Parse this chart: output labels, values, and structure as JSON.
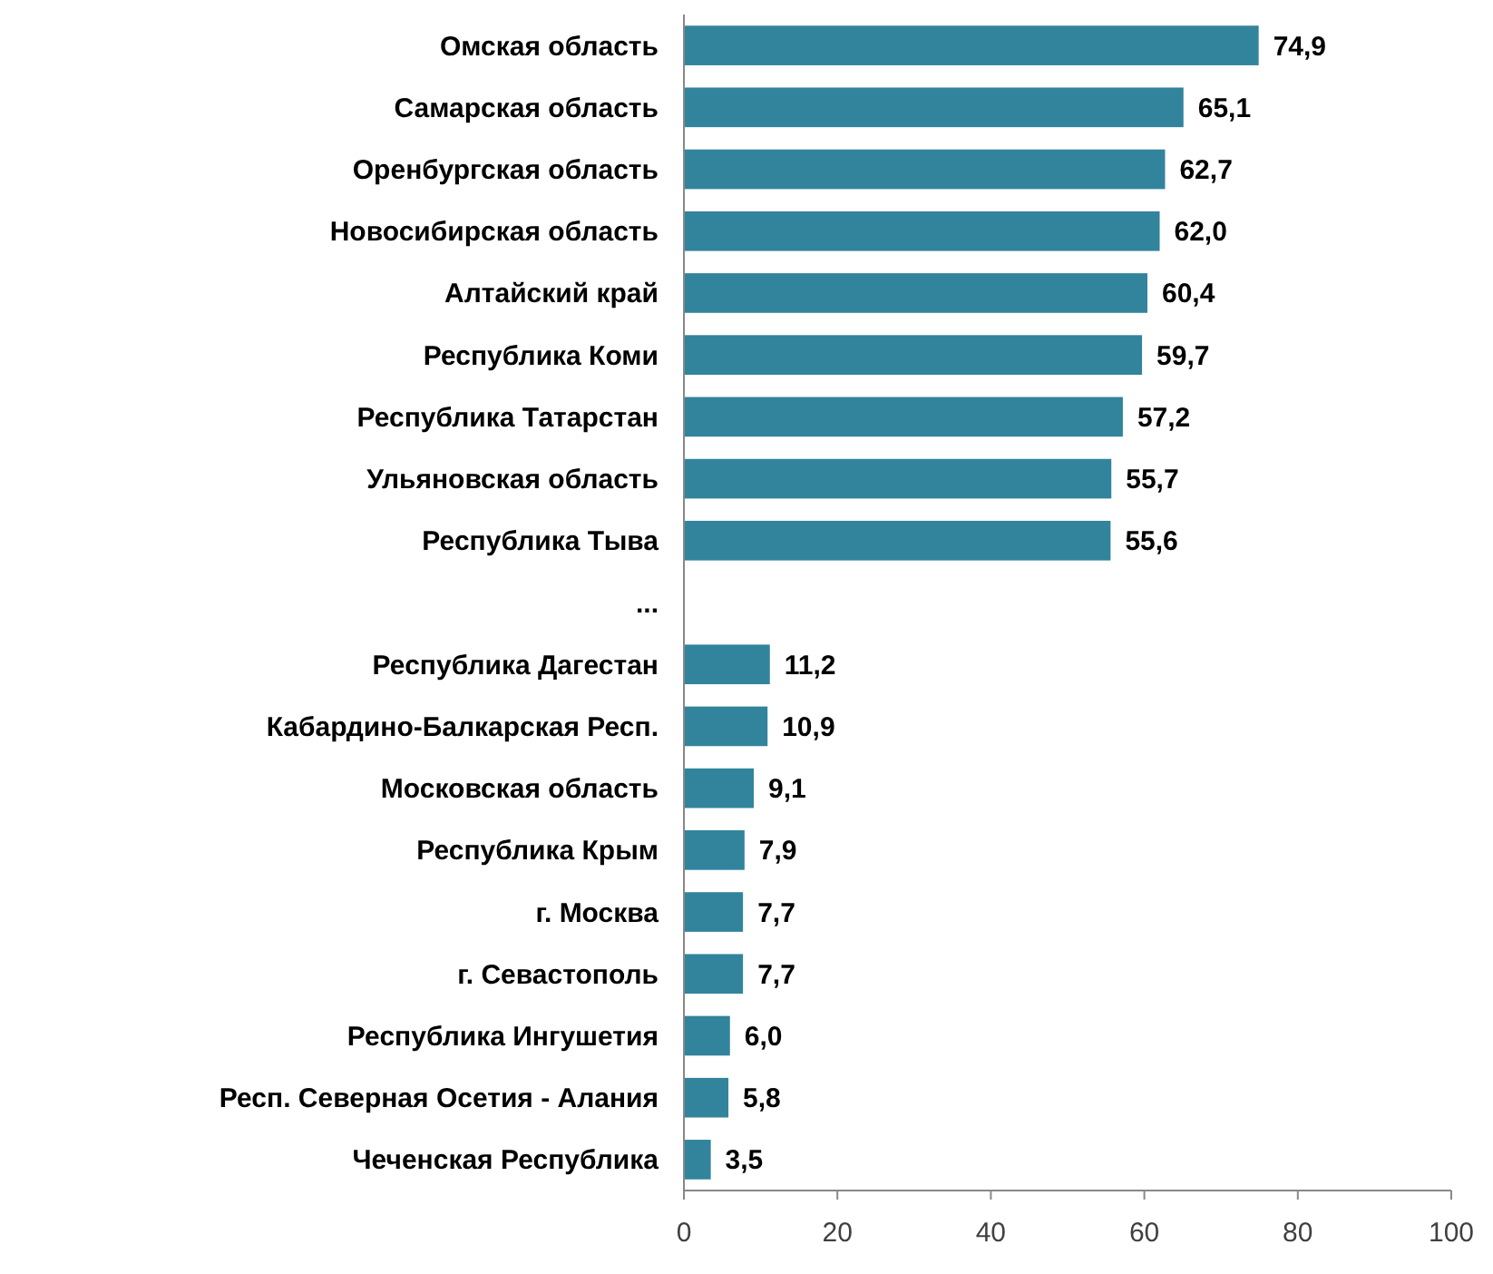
{
  "chart_data": {
    "type": "bar",
    "orientation": "horizontal",
    "categories": [
      "Омская область",
      "Самарская область",
      "Оренбургская область",
      "Новосибирская область",
      "Алтайский край",
      "Республика Коми",
      "Республика Татарстан",
      "Ульяновская область",
      "Республика Тыва",
      "...",
      "Республика Дагестан",
      "Кабардино-Балкарская Респ.",
      "Московская область",
      "Республика Крым",
      "г. Москва",
      "г. Севастополь",
      "Республика Ингушетия",
      "Респ. Северная  Осетия - Алания",
      "Чеченская Республика"
    ],
    "values": [
      74.9,
      65.1,
      62.7,
      62.0,
      60.4,
      59.7,
      57.2,
      55.7,
      55.6,
      null,
      11.2,
      10.9,
      9.1,
      7.9,
      7.7,
      7.7,
      6.0,
      5.8,
      3.5
    ],
    "value_labels": [
      "74,9",
      "65,1",
      "62,7",
      "62,0",
      "60,4",
      "59,7",
      "57,2",
      "55,7",
      "55,6",
      null,
      "11,2",
      "10,9",
      "9,1",
      "7,9",
      "7,7",
      "7,7",
      "6,0",
      "5,8",
      "3,5"
    ],
    "color": "#31849b",
    "xlim": [
      0,
      100
    ],
    "xticks": [
      0,
      20,
      40,
      60,
      80,
      100
    ],
    "grid": false
  }
}
